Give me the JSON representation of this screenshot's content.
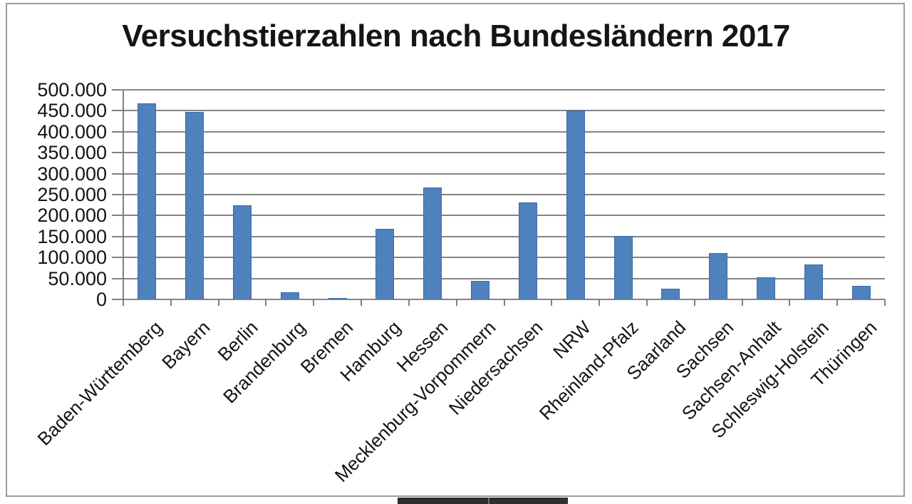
{
  "chart_data": {
    "type": "bar",
    "title": "Versuchstierzahlen nach Bundesländern 2017",
    "categories": [
      "Baden-Württemberg",
      "Bayern",
      "Berlin",
      "Brandenburg",
      "Bremen",
      "Hamburg",
      "Hessen",
      "Mecklenburg-Vorpommern",
      "Niedersachsen",
      "NRW",
      "Rheinland-Pfalz",
      "Saarland",
      "Sachsen",
      "Sachsen-Anhalt",
      "Schleswig-Holstein",
      "Thüringen"
    ],
    "values": [
      467000,
      448000,
      224000,
      17000,
      4000,
      168000,
      267000,
      44000,
      231000,
      451000,
      151000,
      25000,
      110000,
      53000,
      84000,
      32000
    ],
    "xlabel": "",
    "ylabel": "",
    "ylim": [
      0,
      500000
    ],
    "ytick_step": 50000,
    "ytick_labels_top_to_bottom": [
      "500.000",
      "450.000",
      "400.000",
      "350.000",
      "300.000",
      "250.000",
      "200.000",
      "150.000",
      "100.000",
      "50.000",
      "0"
    ],
    "grid": true,
    "legend": false,
    "bar_color": "#4f81bd",
    "bar_border_color": "#3c6ba3",
    "gridline_color": "#848484",
    "text_color": "#141414"
  },
  "frame": {
    "border_color": "#9c9c9c",
    "background": "#ffffff"
  },
  "bottom_bar": {
    "color": "#2f2f2f",
    "divider_color": "#6e6e6e"
  }
}
